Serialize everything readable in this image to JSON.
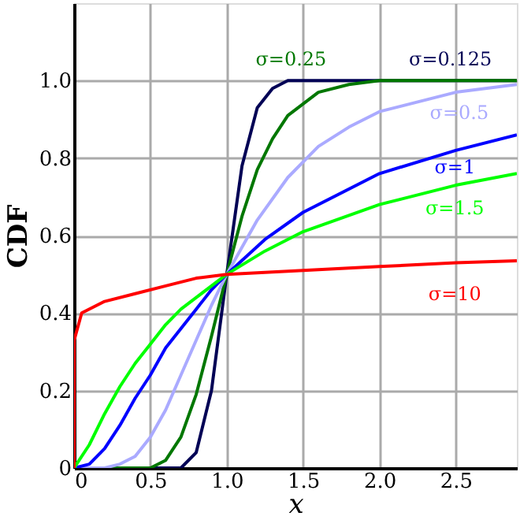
{
  "chart_data": {
    "type": "line",
    "xlabel": "x",
    "ylabel": "CDF",
    "xlim": [
      0,
      2.9
    ],
    "ylim": [
      0,
      1.2
    ],
    "xticks": [
      0,
      0.5,
      {
        "value": 1,
        "label": "1.0"
      },
      1.5,
      {
        "value": 2,
        "label": "2.0"
      },
      2.5
    ],
    "yticks": [
      0,
      0.2,
      0.4,
      0.6,
      0.8,
      {
        "value": 1,
        "label": "1.0"
      }
    ],
    "grid": true,
    "series": [
      {
        "name": "σ=0.125",
        "color": "#000055",
        "x": [
          0,
          0.7,
          0.8,
          0.9,
          1,
          1.1,
          1.2,
          1.3,
          1.4,
          2.9
        ],
        "values": [
          0,
          0,
          0.04,
          0.2,
          0.5,
          0.78,
          0.93,
          0.98,
          1.0,
          1.0
        ]
      },
      {
        "name": "σ=0.25",
        "color": "#007700",
        "x": [
          0,
          0.5,
          0.6,
          0.7,
          0.8,
          0.9,
          1,
          1.1,
          1.2,
          1.3,
          1.4,
          1.6,
          1.8,
          2,
          2.9
        ],
        "values": [
          0,
          0,
          0.02,
          0.08,
          0.19,
          0.34,
          0.5,
          0.65,
          0.77,
          0.85,
          0.91,
          0.97,
          0.99,
          1.0,
          1.0
        ]
      },
      {
        "name": "σ=0.5",
        "color": "#aaaaff",
        "x": [
          0,
          0.2,
          0.3,
          0.4,
          0.5,
          0.6,
          0.7,
          0.8,
          0.9,
          1,
          1.2,
          1.4,
          1.6,
          1.8,
          2,
          2.5,
          2.9
        ],
        "values": [
          0,
          0,
          0.01,
          0.03,
          0.08,
          0.15,
          0.24,
          0.33,
          0.42,
          0.5,
          0.64,
          0.75,
          0.83,
          0.88,
          0.92,
          0.97,
          0.99
        ]
      },
      {
        "name": "σ=1",
        "color": "#0000ff",
        "x": [
          0,
          0.1,
          0.2,
          0.3,
          0.4,
          0.5,
          0.6,
          0.7,
          0.8,
          0.9,
          1,
          1.25,
          1.5,
          2,
          2.5,
          2.9
        ],
        "values": [
          0,
          0.01,
          0.05,
          0.11,
          0.18,
          0.24,
          0.31,
          0.36,
          0.41,
          0.46,
          0.5,
          0.59,
          0.66,
          0.76,
          0.82,
          0.86
        ]
      },
      {
        "name": "σ=1.5",
        "color": "#00ff00",
        "x": [
          0,
          0.1,
          0.2,
          0.3,
          0.4,
          0.5,
          0.6,
          0.7,
          0.8,
          0.9,
          1,
          1.25,
          1.5,
          2,
          2.5,
          2.9
        ],
        "values": [
          0,
          0.06,
          0.14,
          0.21,
          0.27,
          0.32,
          0.37,
          0.41,
          0.44,
          0.47,
          0.5,
          0.56,
          0.61,
          0.68,
          0.73,
          0.76
        ]
      },
      {
        "name": "σ=10",
        "color": "#ff0000",
        "x": [
          0,
          0.001,
          0.05,
          0.2,
          0.4,
          0.6,
          0.8,
          1,
          1.5,
          2,
          2.5,
          2.9
        ],
        "values": [
          0,
          0.33,
          0.4,
          0.43,
          0.45,
          0.47,
          0.49,
          0.5,
          0.51,
          0.52,
          0.53,
          0.535
        ]
      }
    ]
  }
}
